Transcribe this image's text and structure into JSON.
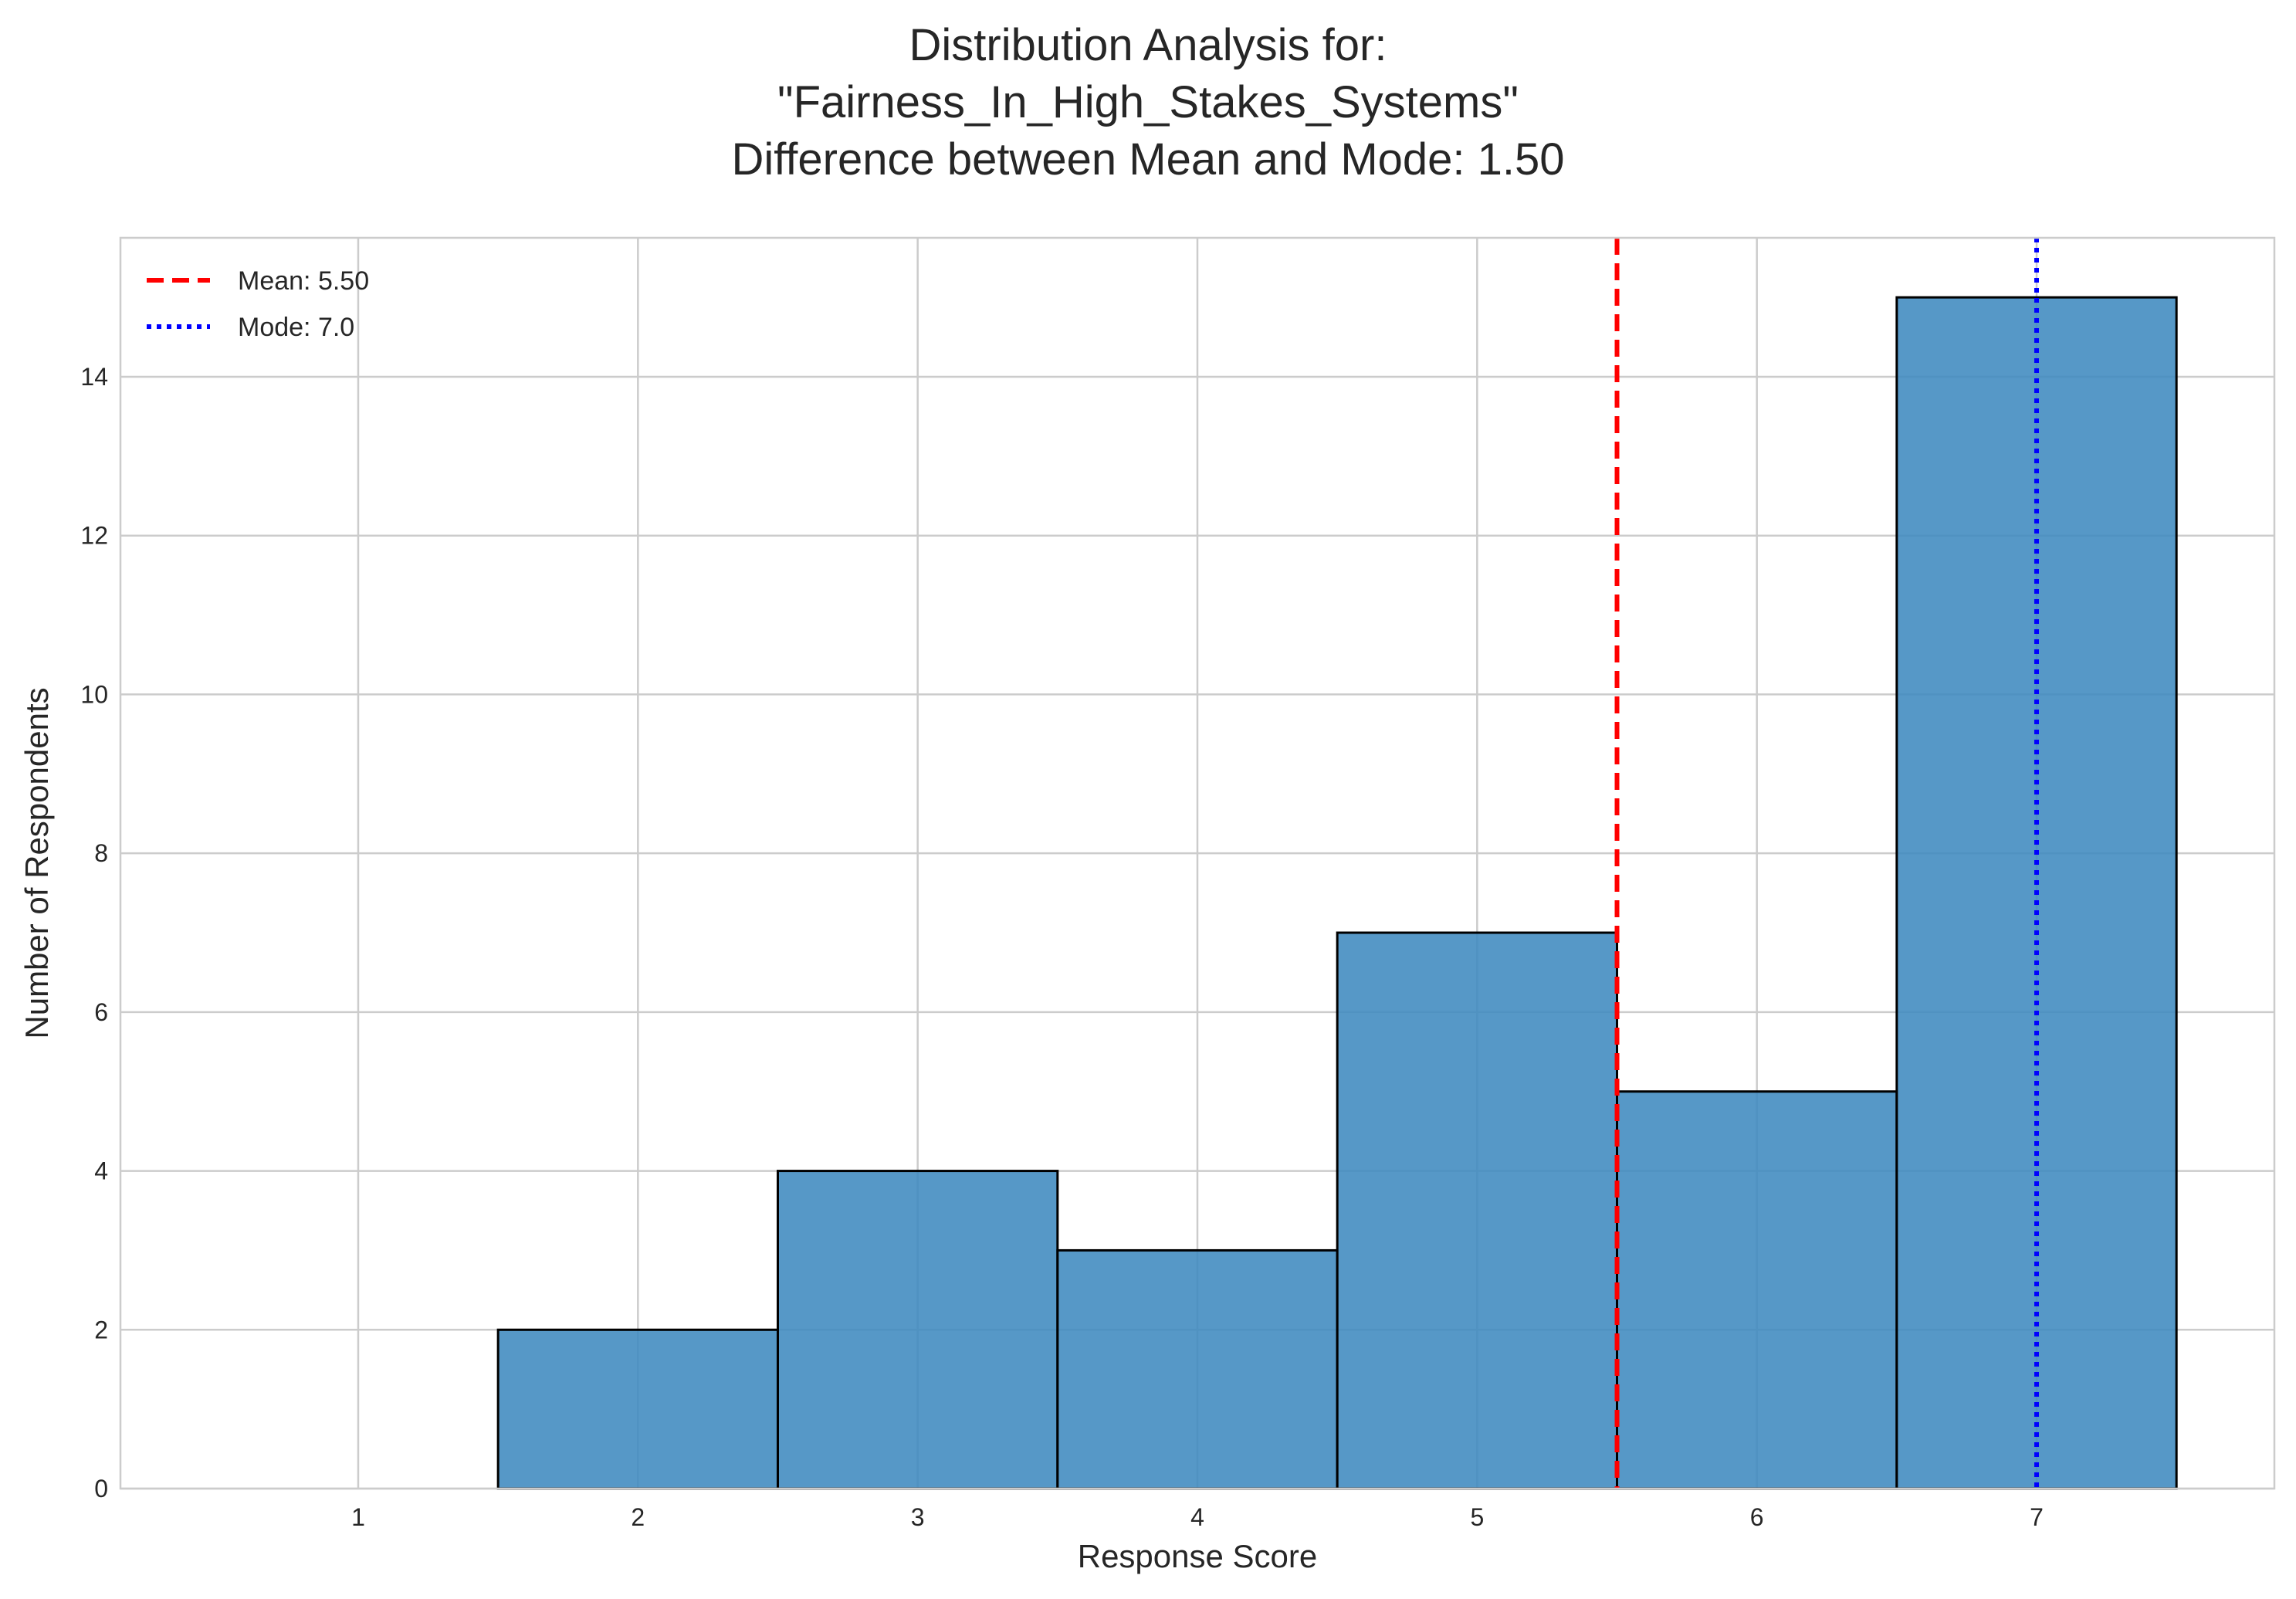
{
  "chart_data": {
    "type": "bar",
    "subtype": "histogram",
    "title_lines": [
      "Distribution Analysis for:",
      "\"Fairness_In_High_Stakes_Systems\"",
      "Difference between Mean and Mode: 1.50"
    ],
    "xlabel": "Response Score",
    "ylabel": "Number of Respondents",
    "categories": [
      "1",
      "2",
      "3",
      "4",
      "5",
      "6",
      "7"
    ],
    "x": [
      1,
      2,
      3,
      4,
      5,
      6,
      7
    ],
    "values": [
      0,
      2,
      4,
      3,
      7,
      5,
      15
    ],
    "bin_width": 1,
    "xlim": [
      0.15,
      7.85
    ],
    "ylim": [
      0,
      15.75
    ],
    "x_ticks": [
      1,
      2,
      3,
      4,
      5,
      6,
      7
    ],
    "y_ticks": [
      0,
      2,
      4,
      6,
      8,
      10,
      12,
      14
    ],
    "grid": true,
    "legend_position": "top-left",
    "bar_color": "#3f8abf",
    "bar_edge_color": "#000000",
    "reference_lines": [
      {
        "name": "Mean: 5.50",
        "x": 5.5,
        "color": "#ff0000",
        "style": "dashed"
      },
      {
        "name": "Mode: 7.0",
        "x": 7.0,
        "color": "#0000ff",
        "style": "dotted"
      }
    ]
  }
}
